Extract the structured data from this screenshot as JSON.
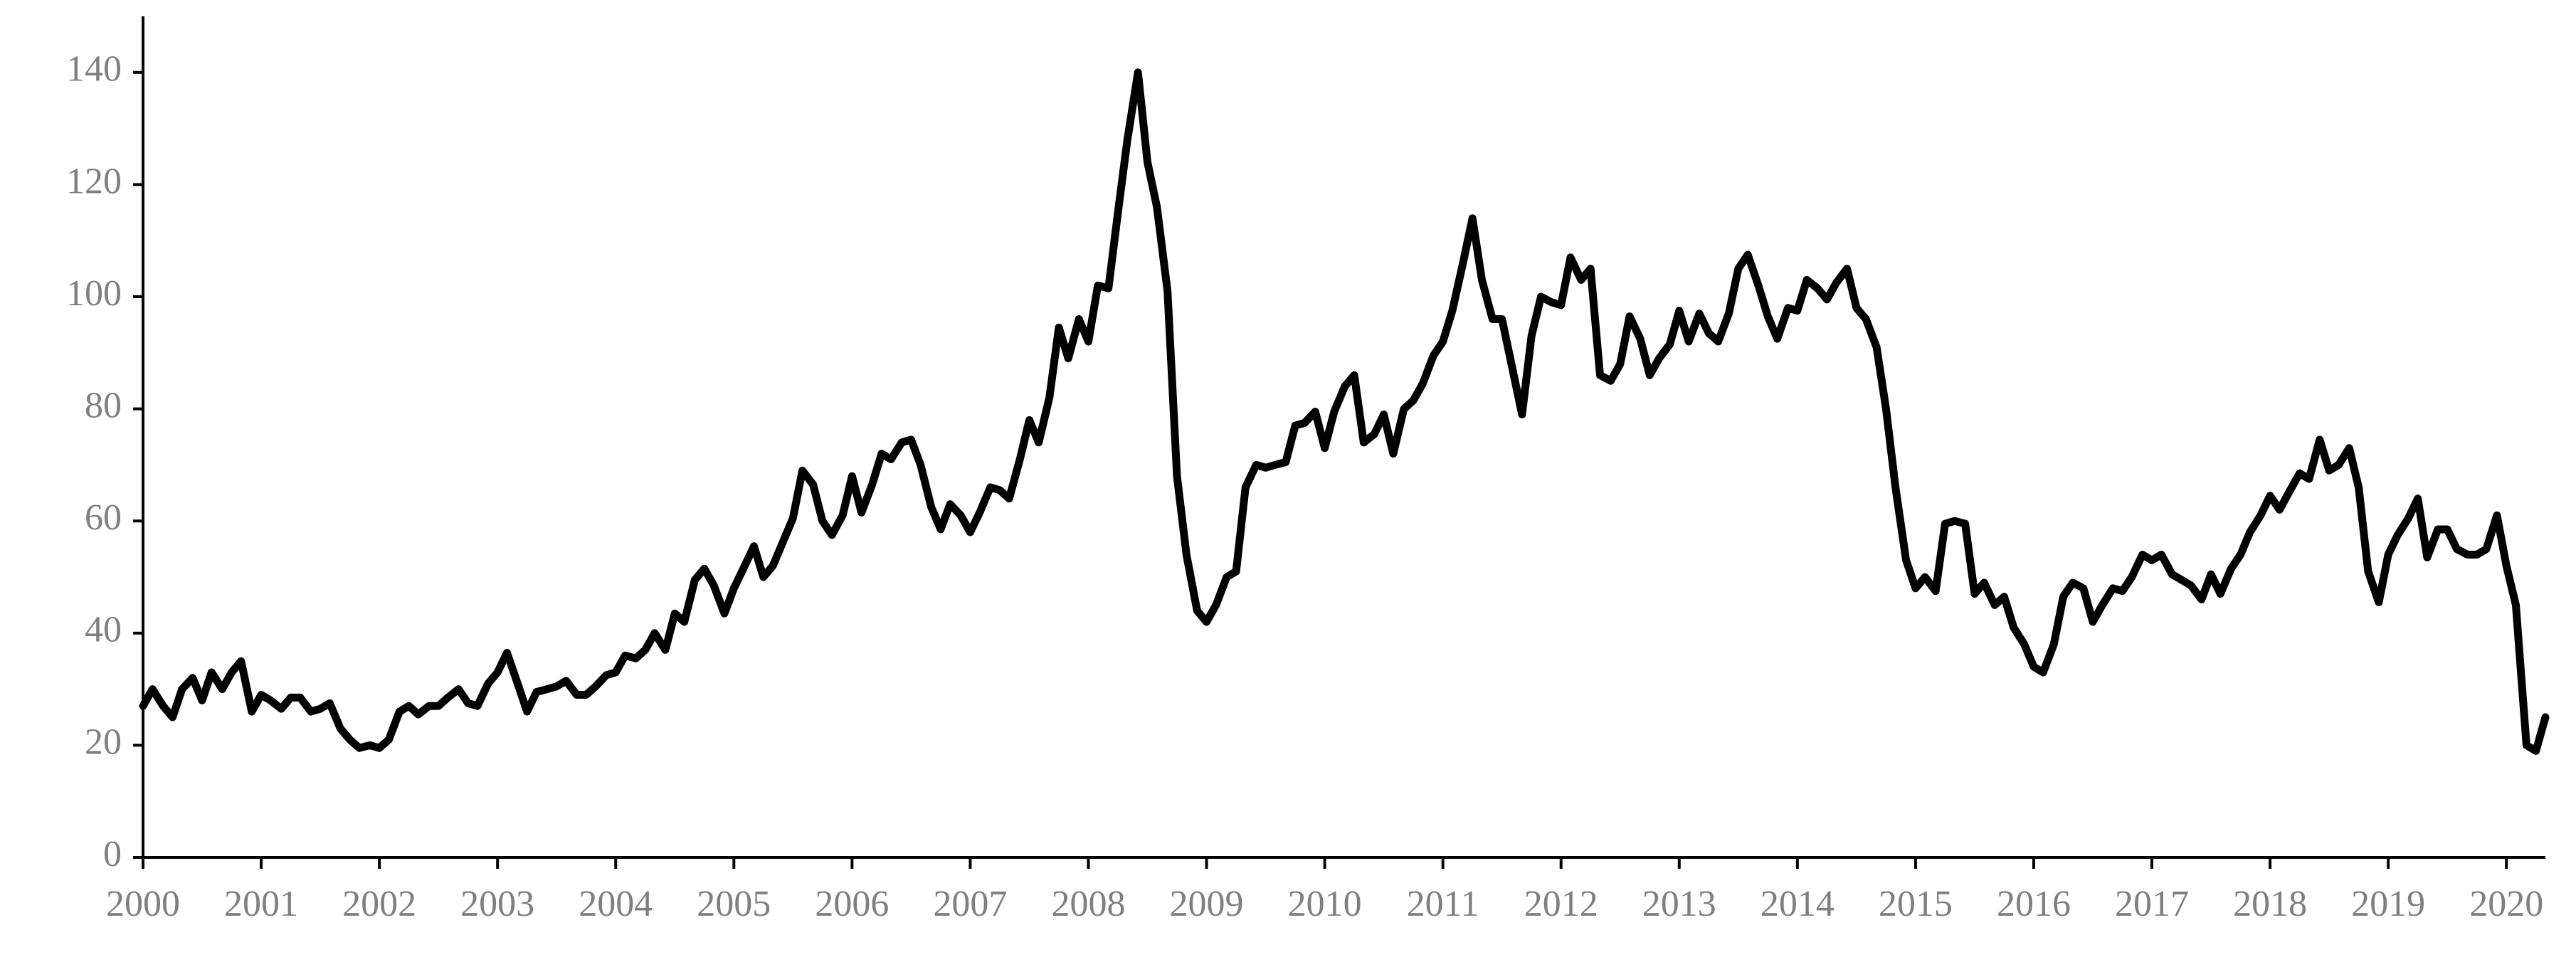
{
  "chart_data": {
    "type": "line",
    "color": "#000000",
    "x": [
      2000.0,
      2000.08,
      2000.17,
      2000.25,
      2000.33,
      2000.42,
      2000.5,
      2000.58,
      2000.67,
      2000.75,
      2000.83,
      2000.92,
      2001.0,
      2001.08,
      2001.17,
      2001.25,
      2001.33,
      2001.42,
      2001.5,
      2001.58,
      2001.67,
      2001.75,
      2001.83,
      2001.92,
      2002.0,
      2002.08,
      2002.17,
      2002.25,
      2002.33,
      2002.42,
      2002.5,
      2002.58,
      2002.67,
      2002.75,
      2002.83,
      2002.92,
      2003.0,
      2003.08,
      2003.17,
      2003.25,
      2003.33,
      2003.42,
      2003.5,
      2003.58,
      2003.67,
      2003.75,
      2003.83,
      2003.92,
      2004.0,
      2004.08,
      2004.17,
      2004.25,
      2004.33,
      2004.42,
      2004.5,
      2004.58,
      2004.67,
      2004.75,
      2004.83,
      2004.92,
      2005.0,
      2005.08,
      2005.17,
      2005.25,
      2005.33,
      2005.42,
      2005.5,
      2005.58,
      2005.67,
      2005.75,
      2005.83,
      2005.92,
      2006.0,
      2006.08,
      2006.17,
      2006.25,
      2006.33,
      2006.42,
      2006.5,
      2006.58,
      2006.67,
      2006.75,
      2006.83,
      2006.92,
      2007.0,
      2007.08,
      2007.17,
      2007.25,
      2007.33,
      2007.42,
      2007.5,
      2007.58,
      2007.67,
      2007.75,
      2007.83,
      2007.92,
      2008.0,
      2008.08,
      2008.17,
      2008.25,
      2008.33,
      2008.42,
      2008.5,
      2008.58,
      2008.67,
      2008.75,
      2008.83,
      2008.92,
      2009.0,
      2009.08,
      2009.17,
      2009.25,
      2009.33,
      2009.42,
      2009.5,
      2009.58,
      2009.67,
      2009.75,
      2009.83,
      2009.92,
      2010.0,
      2010.08,
      2010.17,
      2010.25,
      2010.33,
      2010.42,
      2010.5,
      2010.58,
      2010.67,
      2010.75,
      2010.83,
      2010.92,
      2011.0,
      2011.08,
      2011.17,
      2011.25,
      2011.33,
      2011.42,
      2011.5,
      2011.58,
      2011.67,
      2011.75,
      2011.83,
      2011.92,
      2012.0,
      2012.08,
      2012.17,
      2012.25,
      2012.33,
      2012.42,
      2012.5,
      2012.58,
      2012.67,
      2012.75,
      2012.83,
      2012.92,
      2013.0,
      2013.08,
      2013.17,
      2013.25,
      2013.33,
      2013.42,
      2013.5,
      2013.58,
      2013.67,
      2013.75,
      2013.83,
      2013.92,
      2014.0,
      2014.08,
      2014.17,
      2014.25,
      2014.33,
      2014.42,
      2014.5,
      2014.58,
      2014.67,
      2014.75,
      2014.83,
      2014.92,
      2015.0,
      2015.08,
      2015.17,
      2015.25,
      2015.33,
      2015.42,
      2015.5,
      2015.58,
      2015.67,
      2015.75,
      2015.83,
      2015.92,
      2016.0,
      2016.08,
      2016.17,
      2016.25,
      2016.33,
      2016.42,
      2016.5,
      2016.58,
      2016.67,
      2016.75,
      2016.83,
      2016.92,
      2017.0,
      2017.08,
      2017.17,
      2017.25,
      2017.33,
      2017.42,
      2017.5,
      2017.58,
      2017.67,
      2017.75,
      2017.83,
      2017.92,
      2018.0,
      2018.08,
      2018.17,
      2018.25,
      2018.33,
      2018.42,
      2018.5,
      2018.58,
      2018.67,
      2018.75,
      2018.83,
      2018.92,
      2019.0,
      2019.08,
      2019.17,
      2019.25,
      2019.33,
      2019.42,
      2019.5,
      2019.58,
      2019.67,
      2019.75,
      2019.83,
      2019.92,
      2020.0,
      2020.08,
      2020.17,
      2020.25,
      2020.33
    ],
    "values": [
      27,
      30,
      27,
      25,
      30,
      32,
      28,
      33,
      30,
      33,
      35,
      26,
      29,
      28,
      26.5,
      28.5,
      28.5,
      26,
      26.5,
      27.5,
      23,
      21,
      19.5,
      20,
      19.5,
      21,
      26,
      27,
      25.5,
      27,
      27,
      28.5,
      30,
      27.5,
      27,
      31,
      33,
      36.5,
      31,
      26,
      29.5,
      30,
      30.5,
      31.5,
      29,
      29,
      30.5,
      32.5,
      33,
      36,
      35.5,
      37,
      40,
      37,
      43.5,
      42,
      49.5,
      51.5,
      48.5,
      43.5,
      48,
      51.5,
      55.5,
      50,
      52,
      56.5,
      60.5,
      69,
      66.5,
      60,
      57.5,
      61,
      68,
      61.5,
      66.5,
      72,
      71,
      74,
      74.5,
      70,
      62.5,
      58.5,
      63,
      61,
      58,
      61.5,
      66,
      65.5,
      64,
      71,
      78,
      74,
      82,
      94.5,
      89,
      96,
      92,
      102,
      101.5,
      115,
      128,
      140,
      124,
      116,
      101,
      68,
      54,
      44,
      42,
      45,
      50,
      51,
      66,
      70,
      69.5,
      70,
      70.5,
      77,
      77.5,
      79.5,
      73,
      79.5,
      84,
      86,
      74,
      75.5,
      79,
      72,
      80,
      81.5,
      84.5,
      89.5,
      92,
      97.5,
      106,
      114,
      103,
      96,
      96,
      88,
      79,
      93,
      100,
      99,
      98.5,
      107,
      103,
      105,
      86,
      85,
      88,
      96.5,
      92.5,
      86,
      89,
      91.5,
      97.5,
      92,
      97,
      93.5,
      92,
      97,
      105,
      107.5,
      102,
      96.5,
      92.5,
      98,
      97.5,
      103,
      101.5,
      99.5,
      102.5,
      105,
      98,
      96,
      91,
      80,
      66,
      53,
      48,
      50,
      47.5,
      59.5,
      60,
      59.5,
      47,
      49,
      45,
      46.5,
      41,
      38,
      34,
      33,
      38,
      46.5,
      49,
      48,
      42,
      45,
      48,
      47.5,
      50,
      54,
      53,
      54,
      50.5,
      49.5,
      48.5,
      46,
      50.5,
      47,
      51.5,
      54,
      58,
      61,
      64.5,
      62,
      65.5,
      68.5,
      67.5,
      74.5,
      69,
      70,
      73,
      66,
      51,
      45.5,
      54,
      57.5,
      60.5,
      64,
      53.5,
      58.5,
      58.5,
      55,
      54,
      54,
      55,
      61,
      52,
      45,
      20,
      19,
      25
    ],
    "xlim": [
      2000,
      2020.33
    ],
    "ylim": [
      0,
      150
    ],
    "xticks": [
      2000,
      2001,
      2002,
      2003,
      2004,
      2005,
      2006,
      2007,
      2008,
      2009,
      2010,
      2011,
      2012,
      2013,
      2014,
      2015,
      2016,
      2017,
      2018,
      2019,
      2020
    ],
    "yticks": [
      0,
      20,
      40,
      60,
      80,
      100,
      120,
      140
    ],
    "grid": false
  }
}
